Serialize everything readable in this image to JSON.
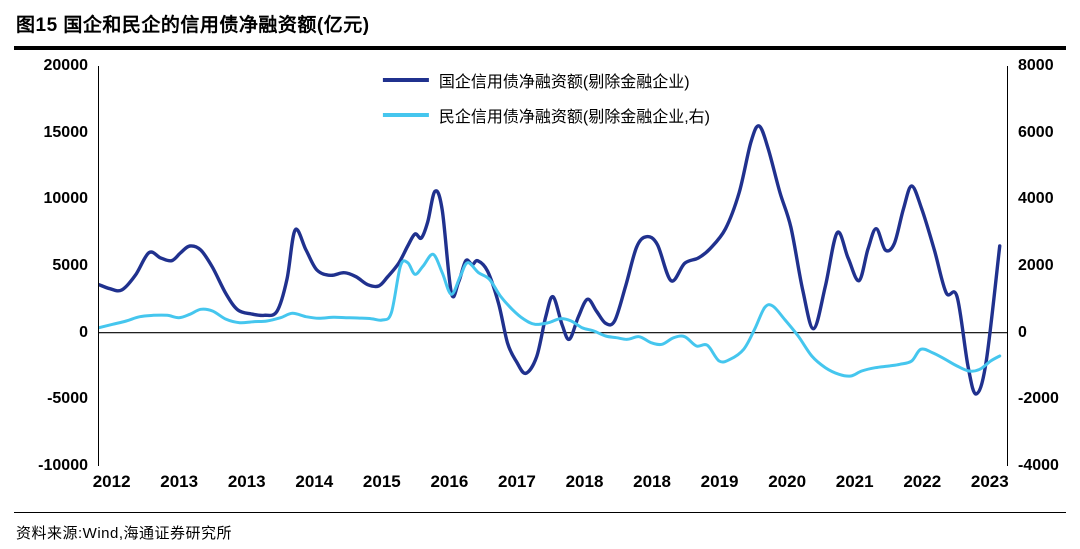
{
  "page": {
    "title": "图15 国企和民企的信用债净融资额(亿元)",
    "source": "资料来源:Wind,海通证券研究所"
  },
  "chart_data": {
    "type": "line",
    "title": "图15 国企和民企的信用债净融资额(亿元)",
    "grid": false,
    "zero_line": true,
    "legend_position": "top-center",
    "legend": [
      {
        "label": "国企信用债净融资额(剔除金融企业)",
        "color": "#20318E",
        "axis": "left"
      },
      {
        "label": "民企信用债净融资额(剔除金融企业,右)",
        "color": "#45C6EE",
        "axis": "right"
      }
    ],
    "left_axis": {
      "min": -10000,
      "max": 20000,
      "ticks": [
        20000,
        15000,
        10000,
        5000,
        0,
        -5000,
        -10000
      ]
    },
    "right_axis": {
      "min": -4000,
      "max": 8000,
      "ticks": [
        8000,
        6000,
        4000,
        2000,
        0,
        -2000,
        -4000
      ]
    },
    "x_labels": [
      "2012",
      "2013",
      "2013",
      "2014",
      "2015",
      "2016",
      "2017",
      "2018",
      "2018",
      "2019",
      "2020",
      "2021",
      "2022",
      "2023"
    ],
    "series": [
      {
        "name": "国企信用债净融资额(剔除金融企业)",
        "axis": "left",
        "color": "#20318E",
        "width": 3.4,
        "points": [
          [
            0.0,
            3600
          ],
          [
            0.012,
            3300
          ],
          [
            0.025,
            3200
          ],
          [
            0.04,
            4300
          ],
          [
            0.055,
            6000
          ],
          [
            0.068,
            5600
          ],
          [
            0.08,
            5400
          ],
          [
            0.09,
            6000
          ],
          [
            0.1,
            6500
          ],
          [
            0.112,
            6200
          ],
          [
            0.125,
            4900
          ],
          [
            0.14,
            2900
          ],
          [
            0.153,
            1700
          ],
          [
            0.168,
            1400
          ],
          [
            0.182,
            1300
          ],
          [
            0.196,
            1600
          ],
          [
            0.207,
            4000
          ],
          [
            0.216,
            7700
          ],
          [
            0.228,
            6200
          ],
          [
            0.24,
            4700
          ],
          [
            0.255,
            4300
          ],
          [
            0.27,
            4500
          ],
          [
            0.283,
            4200
          ],
          [
            0.296,
            3600
          ],
          [
            0.308,
            3500
          ],
          [
            0.318,
            4200
          ],
          [
            0.33,
            5200
          ],
          [
            0.34,
            6500
          ],
          [
            0.348,
            7400
          ],
          [
            0.355,
            7100
          ],
          [
            0.362,
            8300
          ],
          [
            0.37,
            10600
          ],
          [
            0.378,
            9200
          ],
          [
            0.388,
            3000
          ],
          [
            0.396,
            3800
          ],
          [
            0.404,
            5400
          ],
          [
            0.411,
            5100
          ],
          [
            0.417,
            5400
          ],
          [
            0.428,
            4600
          ],
          [
            0.44,
            2200
          ],
          [
            0.45,
            -800
          ],
          [
            0.46,
            -2200
          ],
          [
            0.47,
            -3050
          ],
          [
            0.482,
            -1800
          ],
          [
            0.492,
            1200
          ],
          [
            0.5,
            2700
          ],
          [
            0.51,
            600
          ],
          [
            0.518,
            -500
          ],
          [
            0.528,
            1200
          ],
          [
            0.538,
            2500
          ],
          [
            0.548,
            1600
          ],
          [
            0.558,
            700
          ],
          [
            0.568,
            900
          ],
          [
            0.58,
            3500
          ],
          [
            0.592,
            6400
          ],
          [
            0.603,
            7200
          ],
          [
            0.615,
            6600
          ],
          [
            0.63,
            3900
          ],
          [
            0.645,
            5200
          ],
          [
            0.66,
            5600
          ],
          [
            0.673,
            6300
          ],
          [
            0.69,
            7800
          ],
          [
            0.705,
            10500
          ],
          [
            0.718,
            14300
          ],
          [
            0.727,
            15500
          ],
          [
            0.737,
            13800
          ],
          [
            0.75,
            10500
          ],
          [
            0.762,
            7900
          ],
          [
            0.775,
            3200
          ],
          [
            0.787,
            300
          ],
          [
            0.8,
            3500
          ],
          [
            0.813,
            7500
          ],
          [
            0.825,
            5600
          ],
          [
            0.837,
            3900
          ],
          [
            0.847,
            6300
          ],
          [
            0.856,
            7800
          ],
          [
            0.866,
            6200
          ],
          [
            0.876,
            6700
          ],
          [
            0.886,
            9300
          ],
          [
            0.895,
            11000
          ],
          [
            0.906,
            9300
          ],
          [
            0.92,
            6200
          ],
          [
            0.933,
            3000
          ],
          [
            0.945,
            2700
          ],
          [
            0.957,
            -2500
          ],
          [
            0.966,
            -4600
          ],
          [
            0.977,
            -2200
          ],
          [
            0.992,
            6500
          ]
        ]
      },
      {
        "name": "民企信用债净融资额(剔除金融企业,右)",
        "axis": "right",
        "color": "#45C6EE",
        "width": 3.0,
        "points": [
          [
            0.0,
            150
          ],
          [
            0.015,
            250
          ],
          [
            0.03,
            350
          ],
          [
            0.045,
            480
          ],
          [
            0.06,
            520
          ],
          [
            0.075,
            520
          ],
          [
            0.088,
            450
          ],
          [
            0.1,
            550
          ],
          [
            0.112,
            700
          ],
          [
            0.125,
            650
          ],
          [
            0.14,
            400
          ],
          [
            0.155,
            300
          ],
          [
            0.17,
            330
          ],
          [
            0.185,
            350
          ],
          [
            0.2,
            450
          ],
          [
            0.213,
            580
          ],
          [
            0.228,
            480
          ],
          [
            0.242,
            430
          ],
          [
            0.258,
            460
          ],
          [
            0.272,
            450
          ],
          [
            0.285,
            440
          ],
          [
            0.3,
            420
          ],
          [
            0.312,
            380
          ],
          [
            0.322,
            600
          ],
          [
            0.332,
            2000
          ],
          [
            0.34,
            2100
          ],
          [
            0.348,
            1750
          ],
          [
            0.357,
            2000
          ],
          [
            0.368,
            2350
          ],
          [
            0.378,
            1800
          ],
          [
            0.388,
            1150
          ],
          [
            0.398,
            1700
          ],
          [
            0.406,
            2100
          ],
          [
            0.418,
            1800
          ],
          [
            0.43,
            1600
          ],
          [
            0.442,
            1100
          ],
          [
            0.455,
            700
          ],
          [
            0.468,
            400
          ],
          [
            0.48,
            250
          ],
          [
            0.495,
            300
          ],
          [
            0.508,
            420
          ],
          [
            0.52,
            350
          ],
          [
            0.532,
            150
          ],
          [
            0.545,
            50
          ],
          [
            0.558,
            -100
          ],
          [
            0.57,
            -150
          ],
          [
            0.582,
            -200
          ],
          [
            0.595,
            -120
          ],
          [
            0.608,
            -300
          ],
          [
            0.62,
            -350
          ],
          [
            0.633,
            -150
          ],
          [
            0.645,
            -120
          ],
          [
            0.658,
            -400
          ],
          [
            0.67,
            -380
          ],
          [
            0.683,
            -850
          ],
          [
            0.695,
            -800
          ],
          [
            0.71,
            -500
          ],
          [
            0.722,
            100
          ],
          [
            0.733,
            750
          ],
          [
            0.742,
            800
          ],
          [
            0.755,
            400
          ],
          [
            0.77,
            -100
          ],
          [
            0.785,
            -700
          ],
          [
            0.8,
            -1050
          ],
          [
            0.815,
            -1250
          ],
          [
            0.828,
            -1300
          ],
          [
            0.84,
            -1150
          ],
          [
            0.855,
            -1050
          ],
          [
            0.87,
            -1000
          ],
          [
            0.882,
            -950
          ],
          [
            0.895,
            -850
          ],
          [
            0.905,
            -500
          ],
          [
            0.918,
            -600
          ],
          [
            0.932,
            -800
          ],
          [
            0.945,
            -1000
          ],
          [
            0.958,
            -1150
          ],
          [
            0.97,
            -1100
          ],
          [
            0.982,
            -850
          ],
          [
            0.992,
            -700
          ]
        ]
      }
    ]
  }
}
